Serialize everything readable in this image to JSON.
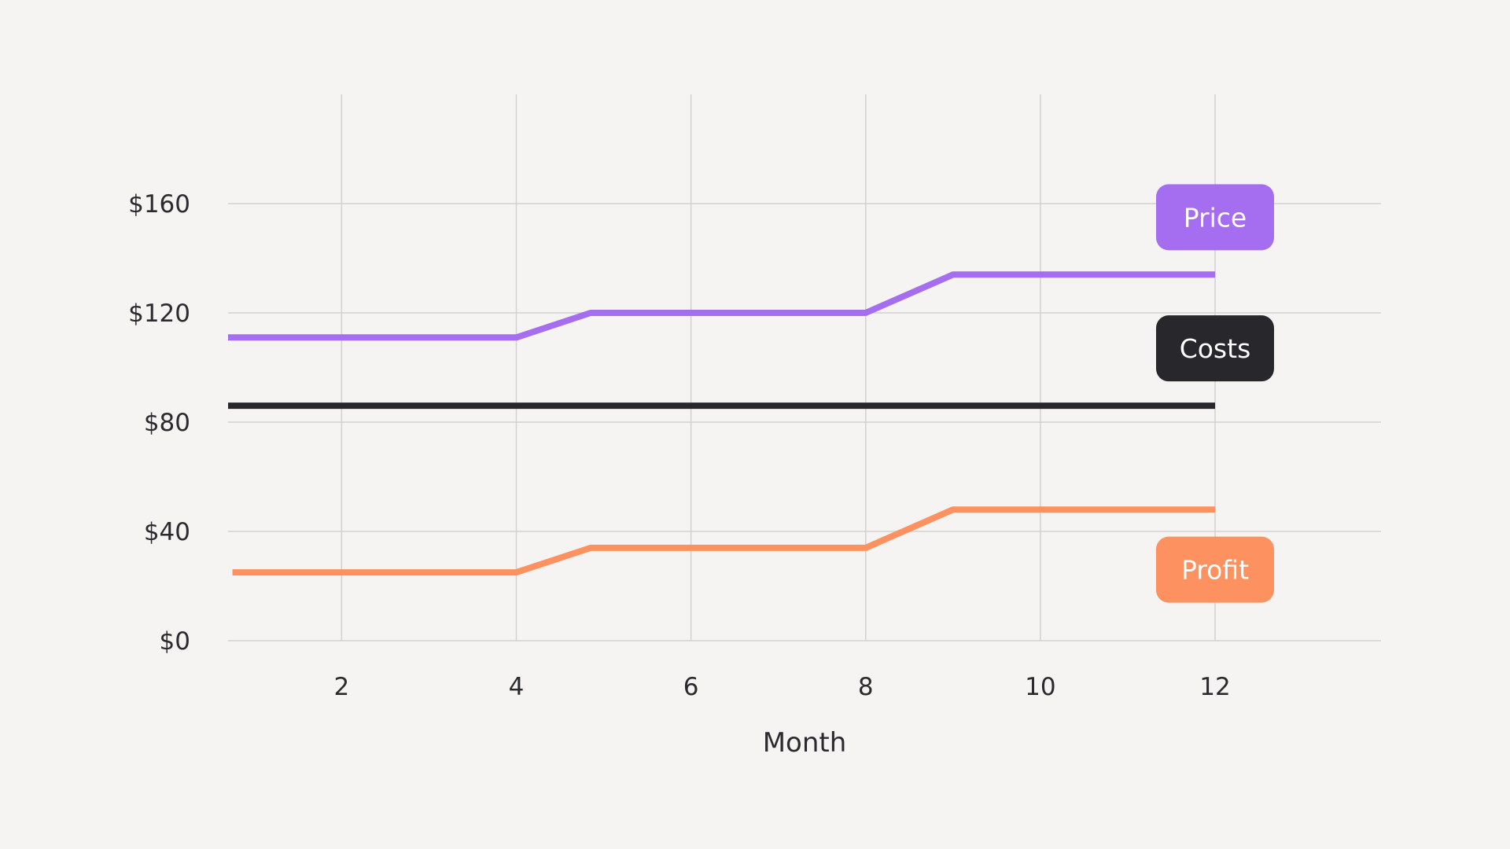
{
  "chart_data": {
    "type": "line",
    "xlabel": "Month",
    "ylabel": "",
    "xlim": [
      0.7,
      13.9
    ],
    "ylim": [
      0,
      200
    ],
    "x_ticks": [
      2,
      4,
      6,
      8,
      10,
      12
    ],
    "x_tick_labels": [
      "2",
      "4",
      "6",
      "8",
      "10",
      "12"
    ],
    "y_ticks": [
      0,
      40,
      80,
      120,
      160
    ],
    "y_tick_labels": [
      "$0",
      "$40",
      "$80",
      "$120",
      "$160"
    ],
    "grid": true,
    "legend": "inline labels at right end of each series",
    "series": [
      {
        "name": "Price",
        "color": "#a56ef0",
        "label_value": 155,
        "points": [
          [
            0.7,
            111
          ],
          [
            4,
            111
          ],
          [
            4.85,
            120
          ],
          [
            8,
            120
          ],
          [
            9,
            134
          ],
          [
            12,
            134
          ]
        ]
      },
      {
        "name": "Costs",
        "color": "#28282c",
        "label_value": 107,
        "points": [
          [
            0.7,
            86
          ],
          [
            12,
            86
          ]
        ]
      },
      {
        "name": "Profit",
        "color": "#fd915f",
        "label_value": 26,
        "points": [
          [
            0.75,
            25
          ],
          [
            4,
            25
          ],
          [
            4.85,
            34
          ],
          [
            8,
            34
          ],
          [
            9,
            48
          ],
          [
            12,
            48
          ]
        ]
      }
    ]
  }
}
